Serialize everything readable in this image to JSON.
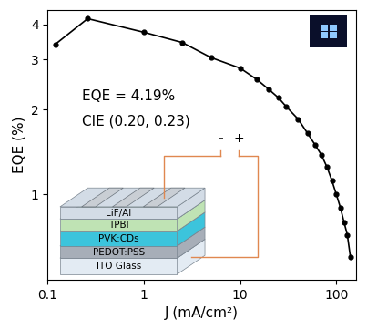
{
  "chart_data": {
    "type": "line",
    "x": [
      0.12,
      0.26,
      1.0,
      2.5,
      5,
      10,
      15,
      20,
      25,
      30,
      40,
      50,
      60,
      70,
      80,
      90,
      100,
      110,
      120,
      130,
      140
    ],
    "values": [
      3.4,
      4.19,
      3.75,
      3.45,
      3.05,
      2.8,
      2.55,
      2.35,
      2.2,
      2.05,
      1.85,
      1.65,
      1.5,
      1.38,
      1.25,
      1.12,
      1.0,
      0.9,
      0.8,
      0.72,
      0.6
    ],
    "xlabel": "J (mA/cm²)",
    "ylabel": "EQE (%)",
    "xlim": [
      0.1,
      160
    ],
    "ylim": [
      0.5,
      4.5
    ],
    "xticks": [
      0.1,
      1,
      10,
      100
    ],
    "yticks": [
      1,
      2,
      3,
      4
    ],
    "log": true,
    "color": "#000000",
    "marker": "circle",
    "line_style": "solid",
    "annotations": [
      "EQE = 4.19%",
      "CIE (0.20, 0.23)"
    ],
    "device_stack": [
      "LiF/Al",
      "TPBI",
      "PVK:CDs",
      "PEDOT:PSS",
      "ITO Glass"
    ],
    "electrodes": [
      "-",
      "+"
    ]
  }
}
